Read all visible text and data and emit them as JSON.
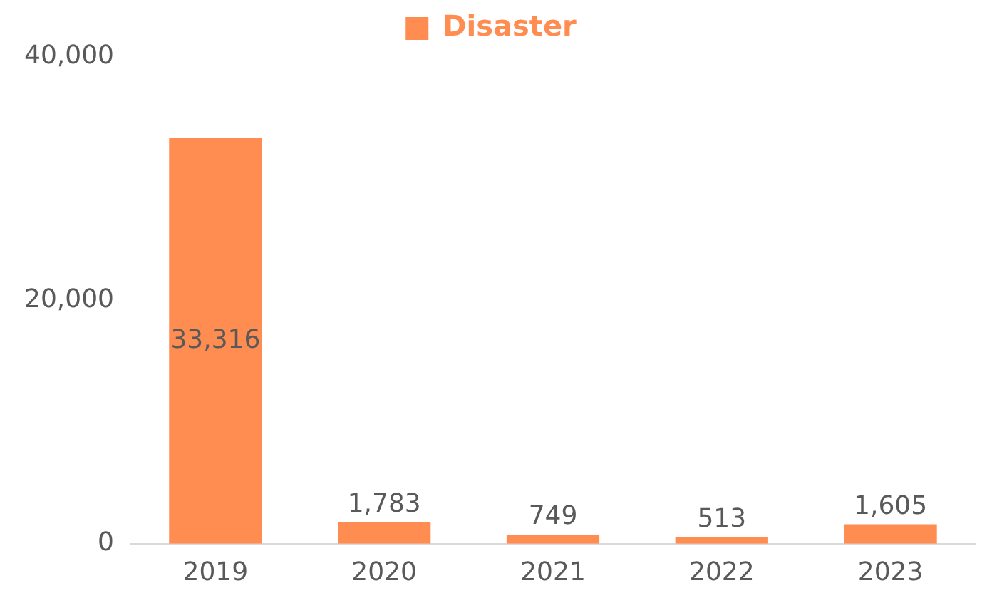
{
  "chart_data": {
    "type": "bar",
    "categories": [
      "2019",
      "2020",
      "2021",
      "2022",
      "2023"
    ],
    "series": [
      {
        "name": "Disaster",
        "color": "#ff8c50",
        "values": [
          33316,
          1783,
          749,
          513,
          1605
        ],
        "value_labels": [
          "33,316",
          "1,783",
          "749",
          "513",
          "1,605"
        ]
      }
    ],
    "ylim": [
      0,
      40000
    ],
    "yticks": [
      0,
      {
        "value": 20000,
        "label": "20,000"
      },
      {
        "value": 40000,
        "label": "40,000"
      }
    ],
    "grid": false,
    "legend": "top"
  }
}
